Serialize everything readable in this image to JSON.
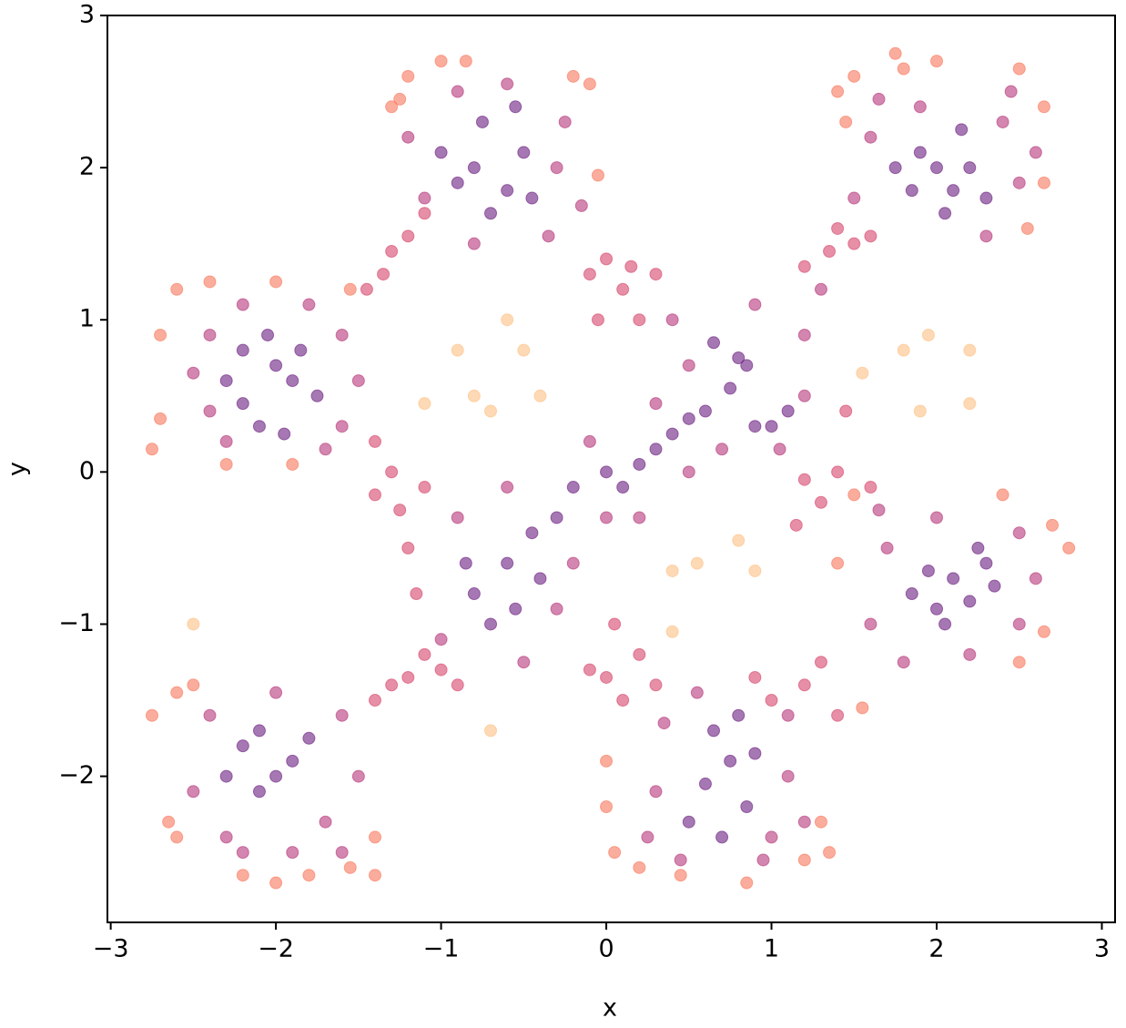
{
  "chart_data": {
    "type": "scatter",
    "xlabel": "x",
    "ylabel": "y",
    "xlim": [
      -3.02,
      3.08
    ],
    "ylim": [
      -2.96,
      3.0
    ],
    "xticks": [
      {
        "value": -3,
        "label": "−3"
      },
      {
        "value": -2,
        "label": "−2"
      },
      {
        "value": -1,
        "label": "−1"
      },
      0,
      1,
      2,
      3
    ],
    "yticks": [
      {
        "value": -2,
        "label": "−2"
      },
      {
        "value": -1,
        "label": "−1"
      },
      0,
      1,
      2,
      3
    ],
    "alpha": 0.6,
    "series": [
      {
        "color": "#6b1e80",
        "x": [
          -2.2,
          -2.0,
          -1.9,
          -2.2,
          -2.1,
          -1.85,
          -2.3,
          -1.95,
          -2.05,
          -1.75,
          -0.8,
          -0.9,
          -0.6,
          -0.5,
          -0.75,
          -0.45,
          -0.7,
          -1.0,
          -0.55,
          2.0,
          2.1,
          1.9,
          2.2,
          1.85,
          2.05,
          2.3,
          1.75,
          2.15,
          2.1,
          2.3,
          2.0,
          1.95,
          2.2,
          1.85,
          2.35,
          2.05,
          2.25,
          0.75,
          0.6,
          0.85,
          0.65,
          0.9,
          0.5,
          0.8,
          0.7,
          -2.1,
          -2.2,
          -2.0,
          -1.9,
          -2.1,
          -1.8,
          -2.3,
          -0.8,
          -0.7,
          -0.6,
          -0.45,
          -0.4,
          -0.3,
          -0.2,
          0.0,
          0.1,
          0.2,
          0.3,
          0.4,
          0.5,
          0.6,
          0.75,
          0.85,
          0.9,
          1.0,
          1.1,
          0.65,
          0.8,
          -0.55,
          -0.85
        ],
        "values": [
          0.8,
          0.7,
          0.6,
          0.45,
          0.3,
          0.8,
          0.6,
          0.25,
          0.9,
          0.5,
          2.0,
          1.9,
          1.85,
          2.1,
          2.3,
          1.8,
          1.7,
          2.1,
          2.4,
          2.0,
          1.85,
          2.1,
          2.0,
          1.85,
          1.7,
          1.8,
          2.0,
          2.25,
          -0.7,
          -0.6,
          -0.9,
          -0.65,
          -0.85,
          -0.8,
          -0.75,
          -1.0,
          -0.5,
          -1.9,
          -2.05,
          -2.2,
          -1.7,
          -1.85,
          -2.3,
          -1.6,
          -2.4,
          -1.7,
          -1.8,
          -2.0,
          -1.9,
          -2.1,
          -1.75,
          -2.0,
          -0.8,
          -1.0,
          -0.6,
          -0.4,
          -0.7,
          -0.3,
          -0.1,
          0.0,
          -0.1,
          0.05,
          0.15,
          0.25,
          0.35,
          0.4,
          0.55,
          0.7,
          0.3,
          0.3,
          0.4,
          0.85,
          0.75,
          -0.9,
          -0.6
        ]
      },
      {
        "color": "#b5367a",
        "x": [
          -2.4,
          -2.4,
          -1.6,
          -1.6,
          -2.2,
          -1.8,
          -2.3,
          -1.7,
          -1.5,
          -2.5,
          -1.1,
          -0.3,
          -0.35,
          -0.8,
          -1.2,
          -0.25,
          -0.9,
          -0.6,
          -0.15,
          1.6,
          2.4,
          2.5,
          1.5,
          2.3,
          1.9,
          2.45,
          1.65,
          2.6,
          1.7,
          2.5,
          2.5,
          1.6,
          2.0,
          2.2,
          1.8,
          2.6,
          1.65,
          0.3,
          1.1,
          0.35,
          1.1,
          0.25,
          1.0,
          0.55,
          0.95,
          0.45,
          1.2,
          -2.4,
          -1.6,
          -2.3,
          -1.7,
          -2.5,
          -1.9,
          -2.2,
          -1.5,
          -2.0,
          -1.6,
          -1.0,
          -0.9,
          -0.6,
          -0.5,
          -0.3,
          -0.1,
          0.0,
          0.2,
          0.3,
          0.5,
          0.5,
          0.7,
          0.9,
          1.2,
          1.2,
          1.3,
          0.4,
          1.05,
          -0.2
        ],
        "values": [
          0.9,
          0.4,
          0.9,
          0.3,
          1.1,
          1.1,
          0.2,
          0.15,
          0.6,
          0.65,
          1.8,
          2.0,
          1.55,
          1.5,
          2.2,
          2.3,
          2.5,
          2.55,
          1.75,
          2.2,
          2.3,
          1.9,
          1.8,
          1.55,
          2.4,
          2.5,
          2.45,
          2.1,
          -0.5,
          -0.4,
          -1.0,
          -1.0,
          -0.3,
          -1.2,
          -1.25,
          -0.7,
          -0.25,
          -2.1,
          -2.0,
          -1.65,
          -1.6,
          -2.4,
          -2.4,
          -1.45,
          -2.55,
          -2.55,
          -2.3,
          -1.6,
          -1.6,
          -2.4,
          -2.3,
          -2.1,
          -2.5,
          -2.5,
          -2.0,
          -1.45,
          -2.5,
          -1.1,
          -0.3,
          -0.1,
          -1.25,
          -0.9,
          0.2,
          -0.3,
          -0.3,
          0.45,
          0.0,
          0.7,
          0.15,
          1.1,
          0.5,
          0.9,
          1.2,
          1.0,
          0.15,
          -0.6
        ]
      },
      {
        "color": "#d6456b",
        "x": [
          -1.45,
          -1.3,
          -1.2,
          -1.35,
          -1.1,
          0.0,
          0.1,
          0.2,
          -0.1,
          0.15,
          0.3,
          -0.05,
          1.4,
          1.5,
          1.2,
          1.6,
          1.35,
          1.2,
          1.3,
          1.4,
          1.6,
          1.15,
          1.45,
          0.0,
          0.1,
          -0.1,
          0.2,
          0.3,
          0.05,
          -1.1,
          -1.2,
          -1.3,
          -1.0,
          -1.4,
          -0.9,
          -1.4,
          -1.3,
          -1.25,
          -1.2,
          -1.15,
          -1.1,
          -1.4,
          1.0,
          1.2,
          1.3,
          1.4,
          0.9
        ],
        "values": [
          1.2,
          1.45,
          1.55,
          1.3,
          1.7,
          1.4,
          1.2,
          1.0,
          1.3,
          1.35,
          1.3,
          1.0,
          1.6,
          1.5,
          1.35,
          1.55,
          1.45,
          -0.05,
          -0.2,
          0.0,
          -0.1,
          -0.35,
          0.4,
          -1.35,
          -1.5,
          -1.3,
          -1.2,
          -1.4,
          -1.0,
          -1.2,
          -1.35,
          -1.4,
          -1.3,
          -1.5,
          -1.4,
          0.2,
          0.0,
          -0.25,
          -0.5,
          -0.8,
          -0.1,
          -0.15,
          -1.5,
          -1.4,
          -1.25,
          -1.6,
          -1.35
        ]
      },
      {
        "color": "#f8765c",
        "x": [
          -2.6,
          -2.7,
          -2.7,
          -2.75,
          -2.4,
          -2.0,
          -2.3,
          -1.9,
          -1.55,
          -1.25,
          -1.2,
          -1.0,
          -0.85,
          -0.2,
          -0.1,
          -0.05,
          -1.3,
          1.5,
          1.45,
          1.8,
          2.0,
          2.5,
          2.65,
          2.65,
          2.55,
          1.4,
          1.75,
          2.7,
          2.8,
          2.65,
          2.5,
          1.55,
          1.4,
          1.5,
          2.4,
          0.0,
          0.05,
          0.2,
          0.45,
          0.85,
          1.3,
          1.35,
          1.2,
          0.0,
          -2.6,
          -2.75,
          -2.5,
          -2.65,
          -2.6,
          -2.2,
          -2.0,
          -1.8,
          -1.55,
          -1.4,
          -1.4
        ],
        "values": [
          1.2,
          0.9,
          0.35,
          0.15,
          1.25,
          1.25,
          0.05,
          0.05,
          1.2,
          2.45,
          2.6,
          2.7,
          2.7,
          2.6,
          2.55,
          1.95,
          2.4,
          2.6,
          2.3,
          2.65,
          2.7,
          2.65,
          2.4,
          1.9,
          1.6,
          2.5,
          2.75,
          -0.35,
          -0.5,
          -1.05,
          -1.25,
          -1.55,
          -0.6,
          -0.15,
          -0.15,
          -2.2,
          -2.5,
          -2.6,
          -2.65,
          -2.7,
          -2.3,
          -2.5,
          -2.55,
          -1.9,
          -1.45,
          -1.6,
          -1.4,
          -2.3,
          -2.4,
          -2.65,
          -2.7,
          -2.65,
          -2.6,
          -2.65,
          -2.4
        ]
      },
      {
        "color": "#fdbf84",
        "x": [
          -0.9,
          -0.6,
          -0.4,
          -0.8,
          -0.5,
          -1.1,
          -0.7,
          -2.5,
          0.4,
          0.55,
          0.9,
          0.8,
          0.4,
          1.55,
          1.8,
          2.2,
          1.9,
          2.2,
          1.95,
          -0.7
        ],
        "values": [
          0.8,
          1.0,
          0.5,
          0.5,
          0.8,
          0.45,
          0.4,
          -1.0,
          -0.65,
          -0.6,
          -0.65,
          -0.45,
          -1.05,
          0.65,
          0.8,
          0.8,
          0.4,
          0.45,
          0.9,
          -1.7
        ]
      }
    ]
  }
}
